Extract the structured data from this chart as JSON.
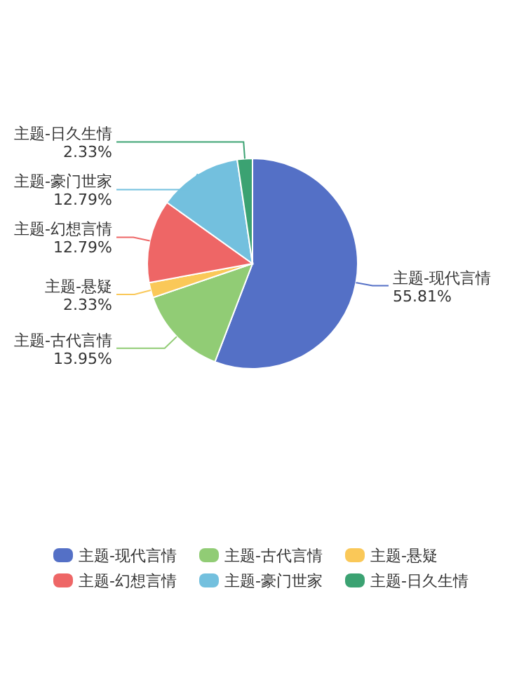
{
  "chart_data": {
    "type": "pie",
    "categories": [
      "主题-现代言情",
      "主题-古代言情",
      "主题-悬疑",
      "主题-幻想言情",
      "主题-豪门世家",
      "主题-日久生情"
    ],
    "values": [
      55.81,
      13.95,
      2.33,
      12.79,
      12.79,
      2.33
    ],
    "value_labels": [
      "55.81%",
      "13.95%",
      "2.33%",
      "12.79%",
      "12.79%",
      "2.33%"
    ],
    "colors": [
      "#5470c6",
      "#91cc75",
      "#fac858",
      "#ee6666",
      "#73c0de",
      "#3ba272"
    ],
    "legend": "bottom"
  }
}
